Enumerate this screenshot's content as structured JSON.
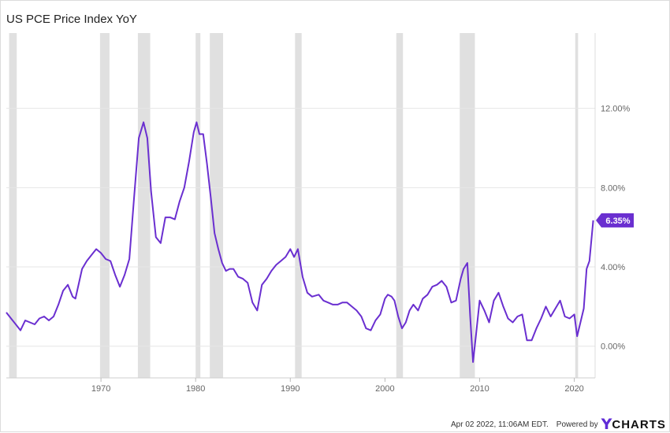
{
  "header": {
    "title": "US PCE Price Index YoY"
  },
  "footer": {
    "timestamp": "Apr 02 2022, 11:06AM EDT.",
    "powered_by": "Powered by",
    "brand_y": "Y",
    "brand_rest": "CHARTS"
  },
  "colors": {
    "series": "#6a2fd0",
    "recession": "#e0e0e0",
    "grid": "#e6e6e6"
  },
  "chart_data": {
    "type": "line",
    "title": "US PCE Price Index YoY",
    "xlabel": "",
    "ylabel": "",
    "xlim": [
      1960.0,
      2022.2
    ],
    "ylim": [
      -1.6,
      15.8
    ],
    "x_ticks": [
      1970,
      1980,
      1990,
      2000,
      2010,
      2020
    ],
    "x_tick_labels": [
      "1970",
      "1980",
      "1990",
      "2000",
      "2010",
      "2020"
    ],
    "y_ticks": [
      0,
      4,
      8,
      12
    ],
    "y_tick_labels": [
      "0.00%",
      "4.00%",
      "8.00%",
      "12.00%"
    ],
    "grid": true,
    "last_value_label": "6.35%",
    "recessions": [
      [
        1960.3,
        1961.1
      ],
      [
        1969.9,
        1970.9
      ],
      [
        1973.9,
        1975.2
      ],
      [
        1980.0,
        1980.5
      ],
      [
        1981.5,
        1982.9
      ],
      [
        1990.5,
        1991.2
      ],
      [
        2001.2,
        2001.9
      ],
      [
        2007.9,
        2009.5
      ],
      [
        2020.1,
        2020.4
      ]
    ],
    "series": [
      {
        "name": "US PCE Price Index YoY",
        "x": [
          1960.0,
          1960.5,
          1961.0,
          1961.5,
          1962.0,
          1962.5,
          1963.0,
          1963.5,
          1964.0,
          1964.5,
          1965.0,
          1965.5,
          1966.0,
          1966.5,
          1967.0,
          1967.3,
          1968.0,
          1968.5,
          1969.0,
          1969.5,
          1970.0,
          1970.5,
          1971.0,
          1971.5,
          1972.0,
          1972.5,
          1973.0,
          1973.5,
          1974.0,
          1974.5,
          1974.9,
          1975.3,
          1975.8,
          1976.3,
          1976.8,
          1977.3,
          1977.8,
          1978.3,
          1978.8,
          1979.3,
          1979.8,
          1980.1,
          1980.4,
          1980.8,
          1981.2,
          1981.6,
          1982.0,
          1982.4,
          1982.8,
          1983.2,
          1983.6,
          1984.0,
          1984.5,
          1985.0,
          1985.5,
          1986.0,
          1986.5,
          1987.0,
          1987.5,
          1988.0,
          1988.5,
          1989.0,
          1989.5,
          1990.0,
          1990.4,
          1990.8,
          1991.3,
          1991.8,
          1992.3,
          1993.0,
          1993.5,
          1994.0,
          1994.5,
          1995.0,
          1995.5,
          1996.0,
          1996.5,
          1997.0,
          1997.5,
          1998.0,
          1998.5,
          1999.0,
          1999.5,
          2000.0,
          2000.3,
          2000.7,
          2001.0,
          2001.4,
          2001.8,
          2002.2,
          2002.6,
          2003.0,
          2003.5,
          2004.0,
          2004.5,
          2005.0,
          2005.5,
          2006.0,
          2006.5,
          2007.0,
          2007.5,
          2008.0,
          2008.3,
          2008.7,
          2009.0,
          2009.3,
          2009.6,
          2010.0,
          2010.5,
          2011.0,
          2011.5,
          2012.0,
          2012.5,
          2013.0,
          2013.5,
          2014.0,
          2014.5,
          2015.0,
          2015.5,
          2016.0,
          2016.5,
          2017.0,
          2017.5,
          2018.0,
          2018.5,
          2019.0,
          2019.5,
          2020.0,
          2020.3,
          2020.6,
          2021.0,
          2021.3,
          2021.6,
          2022.0
        ],
        "values": [
          1.7,
          1.4,
          1.1,
          0.8,
          1.3,
          1.2,
          1.1,
          1.4,
          1.5,
          1.3,
          1.5,
          2.1,
          2.8,
          3.1,
          2.5,
          2.4,
          3.9,
          4.3,
          4.6,
          4.9,
          4.7,
          4.4,
          4.3,
          3.6,
          3.0,
          3.6,
          4.4,
          7.5,
          10.5,
          11.3,
          10.5,
          7.8,
          5.5,
          5.2,
          6.5,
          6.5,
          6.4,
          7.3,
          8.0,
          9.3,
          10.8,
          11.3,
          10.7,
          10.7,
          9.2,
          7.5,
          5.7,
          4.9,
          4.2,
          3.8,
          3.9,
          3.9,
          3.5,
          3.4,
          3.2,
          2.2,
          1.8,
          3.1,
          3.4,
          3.8,
          4.1,
          4.3,
          4.5,
          4.9,
          4.5,
          4.9,
          3.5,
          2.7,
          2.5,
          2.6,
          2.3,
          2.2,
          2.1,
          2.1,
          2.2,
          2.2,
          2.0,
          1.8,
          1.5,
          0.9,
          0.8,
          1.3,
          1.6,
          2.4,
          2.6,
          2.5,
          2.3,
          1.5,
          0.9,
          1.2,
          1.8,
          2.1,
          1.8,
          2.4,
          2.6,
          3.0,
          3.1,
          3.3,
          3.0,
          2.2,
          2.3,
          3.4,
          3.9,
          4.2,
          1.5,
          -0.8,
          0.5,
          2.3,
          1.8,
          1.2,
          2.3,
          2.7,
          2.0,
          1.4,
          1.2,
          1.5,
          1.6,
          0.3,
          0.3,
          0.9,
          1.4,
          2.0,
          1.5,
          1.9,
          2.3,
          1.5,
          1.4,
          1.6,
          0.5,
          1.1,
          1.9,
          3.9,
          4.3,
          6.35
        ]
      }
    ]
  }
}
